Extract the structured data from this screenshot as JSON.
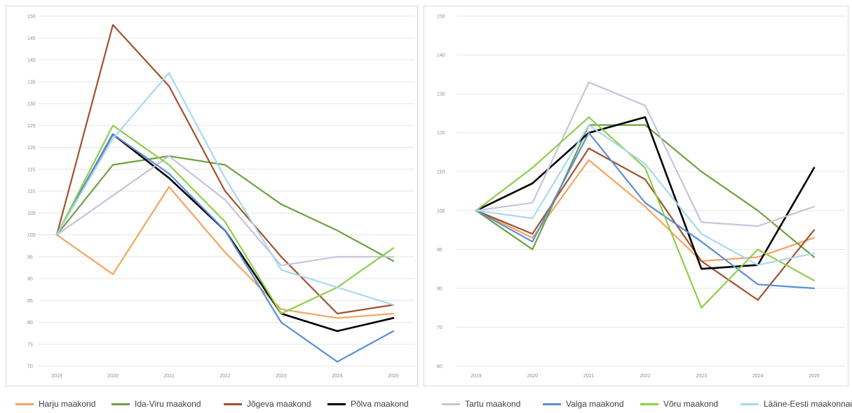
{
  "chart_data": [
    {
      "type": "line",
      "x": [
        "2019",
        "2020",
        "2021",
        "2022",
        "2023",
        "2024",
        "2025"
      ],
      "ylim": [
        70,
        150
      ],
      "yticks": [
        70,
        75,
        80,
        85,
        90,
        95,
        100,
        105,
        110,
        115,
        120,
        125,
        130,
        135,
        140,
        145,
        150
      ],
      "ytick_labels": [
        "70",
        "75",
        "80",
        "85",
        "90",
        "95",
        "100",
        "105",
        "110",
        "115",
        "120",
        "125",
        "130",
        "135",
        "140",
        "145",
        "150"
      ],
      "grid": true,
      "series": [
        {
          "name": "Harju maakond",
          "color": "#f4a460",
          "values": [
            100,
            91,
            111,
            96,
            83,
            81,
            82
          ]
        },
        {
          "name": "Ida-Viru maakond",
          "color": "#70a041",
          "values": [
            100,
            116,
            118,
            116,
            107,
            101,
            94
          ]
        },
        {
          "name": "Jõgeva maakond",
          "color": "#a0522d",
          "values": [
            100,
            148,
            134,
            110,
            95,
            82,
            84
          ]
        },
        {
          "name": "Põlva maakond",
          "color": "#000000",
          "values": [
            100,
            123,
            113,
            101,
            82,
            78,
            81
          ]
        },
        {
          "name": "Tartu maakond",
          "color": "#c8c3dc",
          "values": [
            100,
            109,
            118,
            108,
            93,
            95,
            95
          ]
        },
        {
          "name": "Valga maakond",
          "color": "#5b8ed6",
          "values": [
            100,
            123,
            114,
            101,
            80,
            71,
            78
          ]
        },
        {
          "name": "Võru maakond",
          "color": "#8fce4a",
          "values": [
            100,
            125,
            116,
            103,
            82,
            88,
            97
          ]
        },
        {
          "name": "Lääne-Eesti maakonnad",
          "color": "#aad8ee",
          "values": [
            100,
            122,
            137,
            113,
            92,
            88,
            84
          ]
        }
      ]
    },
    {
      "type": "line",
      "x": [
        "2019",
        "2020",
        "2021",
        "2022",
        "2023",
        "2024",
        "2025"
      ],
      "ylim": [
        60,
        150
      ],
      "yticks": [
        60,
        70,
        80,
        90,
        100,
        110,
        120,
        130,
        140,
        150
      ],
      "ytick_labels": [
        "60",
        "70",
        "80",
        "90",
        "100",
        "110",
        "120",
        "130",
        "140",
        "150"
      ],
      "grid": true,
      "series": [
        {
          "name": "Harju maakond",
          "color": "#f4a460",
          "values": [
            100,
            93,
            113,
            101,
            87,
            88,
            93
          ]
        },
        {
          "name": "Ida-Viru maakond",
          "color": "#70a041",
          "values": [
            100,
            90,
            122,
            122,
            110,
            100,
            88
          ]
        },
        {
          "name": "Jõgeva maakond",
          "color": "#a0522d",
          "values": [
            100,
            94,
            116,
            108,
            87,
            77,
            95
          ]
        },
        {
          "name": "Põlva maakond",
          "color": "#000000",
          "values": [
            100,
            107,
            120,
            124,
            85,
            86,
            111
          ]
        },
        {
          "name": "Tartu maakond",
          "color": "#c8c3dc",
          "values": [
            100,
            102,
            133,
            127,
            97,
            96,
            101
          ]
        },
        {
          "name": "Valga maakond",
          "color": "#5b8ed6",
          "values": [
            100,
            92,
            120,
            102,
            92,
            81,
            80
          ]
        },
        {
          "name": "Võru maakond",
          "color": "#8fce4a",
          "values": [
            100,
            111,
            124,
            111,
            75,
            90,
            82
          ]
        },
        {
          "name": "Lääne-Eesti maakonnad",
          "color": "#aad8ee",
          "values": [
            100,
            98,
            122,
            112,
            94,
            86,
            89
          ]
        }
      ]
    }
  ],
  "legend": {
    "items": [
      {
        "label": "Harju maakond",
        "color": "#f4a460"
      },
      {
        "label": "Ida-Viru maakond",
        "color": "#70a041"
      },
      {
        "label": "Jõgeva maakond",
        "color": "#a0522d"
      },
      {
        "label": "Põlva maakond",
        "color": "#000000"
      },
      {
        "label": "Tartu maakond",
        "color": "#c8c3dc"
      },
      {
        "label": "Valga maakond",
        "color": "#5b8ed6"
      },
      {
        "label": "Võru maakond",
        "color": "#8fce4a"
      },
      {
        "label": "Lääne-Eesti maakonnad",
        "color": "#aad8ee"
      }
    ]
  }
}
